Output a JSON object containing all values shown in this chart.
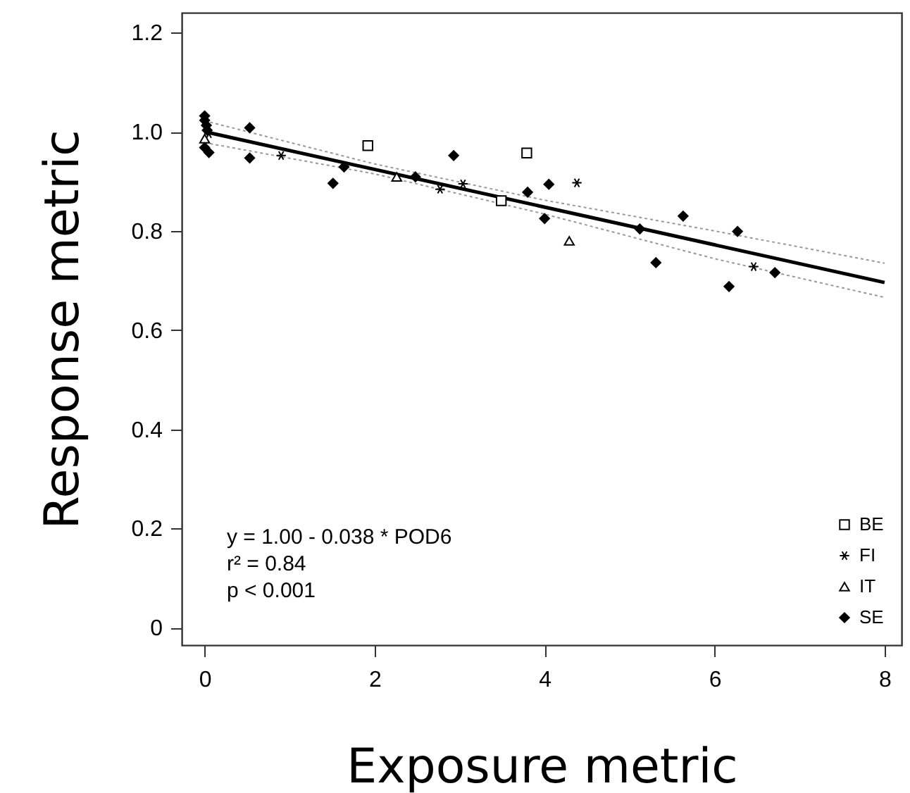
{
  "chart_data": {
    "type": "scatter",
    "xlabel": "Exposure metric",
    "ylabel": "Response metric",
    "xlim": [
      -0.27,
      8.2
    ],
    "ylim": [
      -0.035,
      1.24
    ],
    "xticks": [
      0,
      2,
      4,
      6,
      8
    ],
    "yticks": [
      0,
      0.2,
      0.4,
      0.6,
      0.8,
      {
        "value": 1,
        "label": "1.0"
      },
      1.2
    ],
    "legend": "bottom right",
    "series": [
      {
        "name": "BE",
        "marker": "square",
        "color": "#000000",
        "x": [
          1.92,
          3.49,
          3.79
        ],
        "values": [
          0.972,
          0.861,
          0.957
        ]
      },
      {
        "name": "FI",
        "marker": "cross",
        "color": "#000000",
        "x": [
          0.05,
          0.9,
          2.77,
          3.04,
          4.38,
          6.46
        ],
        "values": [
          0.996,
          0.952,
          0.884,
          0.895,
          0.897,
          0.728
        ]
      },
      {
        "name": "IT",
        "marker": "triangle",
        "color": "#000000",
        "x": [
          0,
          2.26,
          4.29
        ],
        "values": [
          0.986,
          0.909,
          0.78
        ]
      },
      {
        "name": "SE",
        "marker": "diamond",
        "color": "#000000",
        "x": [
          0,
          0,
          0.02,
          0.03,
          0,
          0.05,
          0.53,
          0.53,
          1.51,
          1.64,
          2.48,
          2.93,
          3.8,
          4.05,
          4.0,
          5.12,
          5.31,
          5.63,
          6.27,
          6.17,
          6.71
        ],
        "values": [
          1.032,
          1.023,
          1.013,
          1.003,
          0.968,
          0.958,
          1.008,
          0.947,
          0.896,
          0.929,
          0.909,
          0.952,
          0.878,
          0.894,
          0.825,
          0.804,
          0.736,
          0.83,
          0.799,
          0.688,
          0.716
        ]
      },
      {
        "type": "line",
        "line_style": "solid",
        "color": "#000000",
        "x": [
          0,
          8
        ],
        "values": [
          1.0,
          0.696
        ]
      },
      {
        "type": "line",
        "line_style": "dotted",
        "color": "#999999",
        "x": [
          0,
          2,
          4,
          6,
          8
        ],
        "values": [
          1.022,
          0.935,
          0.862,
          0.8,
          0.735
        ]
      },
      {
        "type": "line",
        "line_style": "dotted",
        "color": "#999999",
        "x": [
          0,
          2,
          4,
          6,
          8
        ],
        "values": [
          0.978,
          0.915,
          0.834,
          0.744,
          0.666
        ]
      }
    ],
    "annotations": [
      "y = 1.00 - 0.038 * POD6",
      "r² = 0.84",
      "p < 0.001"
    ]
  }
}
